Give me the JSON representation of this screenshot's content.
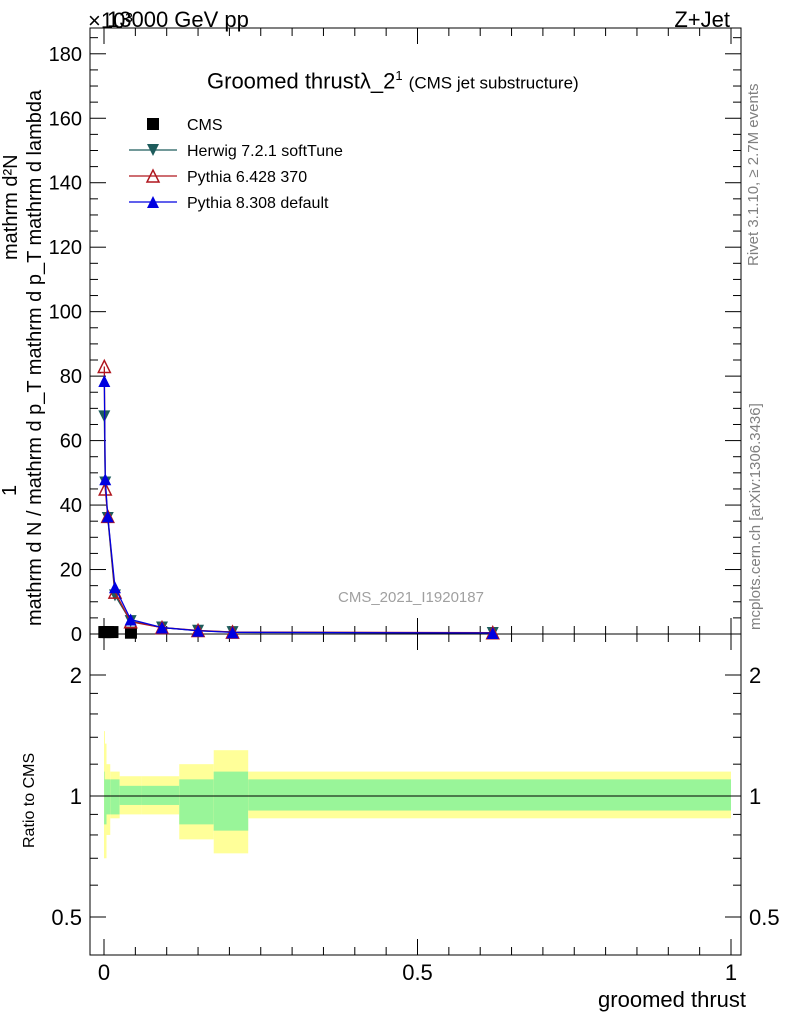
{
  "header": {
    "energy_label": "13000 GeV pp",
    "process_label": "Z+Jet",
    "scale_exponent": "×10³"
  },
  "side": {
    "rivet_label": "Rivet 3.1.10, ≥ 2.7M events",
    "site_label": "mcplots.cern.ch [arXiv:1306.3436]"
  },
  "chart_data": {
    "type": "line",
    "title": "Groomed thrustλ_2",
    "title_superscript": "1",
    "subtitle": "(CMS jet substructure)",
    "watermark": "CMS_2021_I1920187",
    "ylabel_top_numerator": "1",
    "ylabel_top_denominator": "mathrm d N / mathrm d p_T mathrm d p_T mathrm d lambda",
    "ylabel_top_fraction_top": "mathrm d²N",
    "ylabel_ratio": "Ratio to CMS",
    "xlabel": "groomed thrust",
    "y_scale_factor": 1000,
    "xlim": [
      -0.02,
      1.0
    ],
    "ylim": [
      0,
      188
    ],
    "y_ticks": [
      0,
      20,
      40,
      60,
      80,
      100,
      120,
      140,
      160,
      180
    ],
    "x_ticks": [
      0,
      0.5,
      1
    ],
    "x_tick_labels": [
      "0",
      "0.5",
      "1"
    ],
    "ratio_ylim": [
      0.4,
      2.4
    ],
    "ratio_ticks": [
      0.5,
      1,
      2
    ],
    "ratio_tick_labels": [
      "0.5",
      "1",
      "2"
    ],
    "series": [
      {
        "name": "CMS",
        "color": "#000000",
        "marker": "square",
        "x": [
          0.0005,
          0.0025,
          0.0065,
          0.0135,
          0.043
        ],
        "y": [
          0.6,
          0.6,
          0.6,
          0.6,
          0.4
        ]
      },
      {
        "name": "Herwig 7.2.1 softTune",
        "color": "#1e5c5c",
        "marker": "triangle-down",
        "x": [
          0.0005,
          0.002,
          0.006,
          0.0175,
          0.0425,
          0.0925,
          0.15,
          0.205,
          0.62
        ],
        "y": [
          67.5,
          47.0,
          36.0,
          12.0,
          4.0,
          2.0,
          1.0,
          0.6,
          0.3
        ]
      },
      {
        "name": "Pythia 6.428 370",
        "color": "#b0171f",
        "marker": "triangle-up-open",
        "x": [
          0.0005,
          0.002,
          0.006,
          0.0175,
          0.0425,
          0.0925,
          0.15,
          0.205,
          0.62
        ],
        "y": [
          83.0,
          45.0,
          36.5,
          13.0,
          3.8,
          2.0,
          1.1,
          0.6,
          0.4
        ]
      },
      {
        "name": "Pythia 8.308 default",
        "color": "#0000e0",
        "marker": "triangle-up",
        "x": [
          0.0005,
          0.002,
          0.006,
          0.0175,
          0.0425,
          0.0925,
          0.15,
          0.205,
          0.62
        ],
        "y": [
          78.5,
          48.0,
          36.5,
          14.5,
          4.5,
          2.0,
          1.0,
          0.5,
          0.3
        ]
      }
    ],
    "ratio_bands": {
      "edges": [
        0,
        0.001,
        0.004,
        0.01,
        0.025,
        0.06,
        0.12,
        0.175,
        0.23,
        1.0
      ],
      "stat_low": [
        0.85,
        0.85,
        0.9,
        0.9,
        0.95,
        0.95,
        0.85,
        0.82,
        0.92,
        0.92
      ],
      "stat_high": [
        1.15,
        1.1,
        1.1,
        1.1,
        1.06,
        1.06,
        1.1,
        1.15,
        1.1,
        1.1
      ],
      "total_low": [
        0.7,
        0.7,
        0.8,
        0.88,
        0.9,
        0.9,
        0.78,
        0.72,
        0.88,
        0.88
      ],
      "total_high": [
        1.45,
        1.35,
        1.2,
        1.15,
        1.12,
        1.12,
        1.2,
        1.3,
        1.15,
        1.15
      ],
      "stat_color": "#99f599",
      "total_color": "#ffff99"
    }
  }
}
